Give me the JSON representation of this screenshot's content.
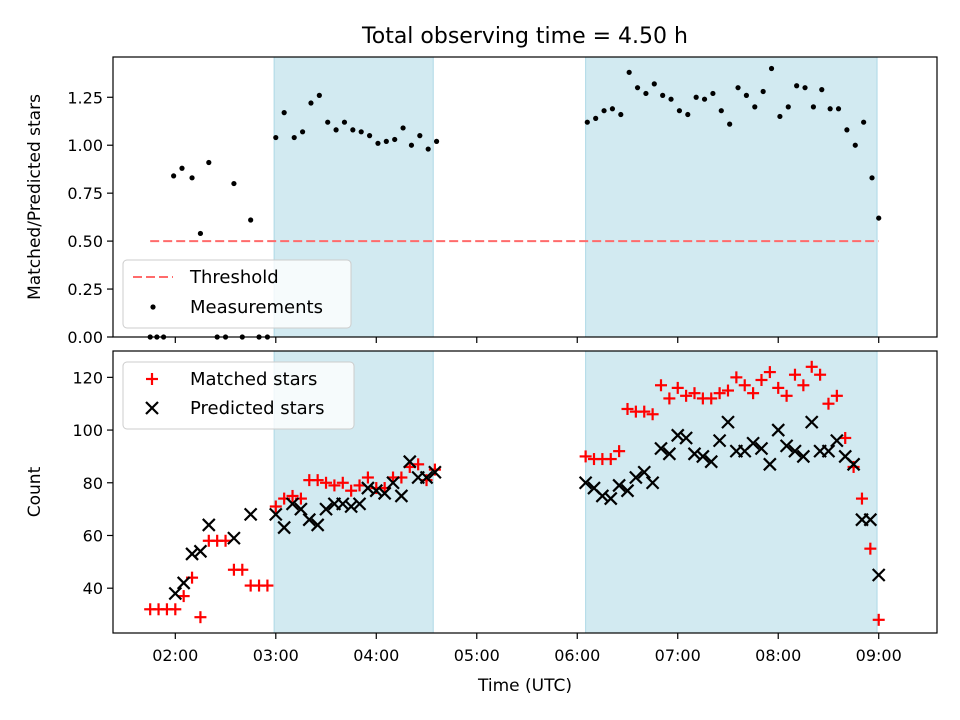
{
  "colors": {
    "shade": "#add8e6",
    "threshold": "#ff6b6b",
    "measurements": "#000000",
    "matched": "#ff0000",
    "predicted": "#000000"
  },
  "chart_data": [
    {
      "type": "scatter",
      "title": "Total observing time = 4.50 h",
      "ylabel": "Matched/Predicted stars",
      "xlim_hours": [
        1.38,
        9.58
      ],
      "ylim": [
        0,
        1.46
      ],
      "yticks": [
        0.0,
        0.25,
        0.5,
        0.75,
        1.0,
        1.25
      ],
      "ytick_labels": [
        "0.00",
        "0.25",
        "0.50",
        "0.75",
        "1.00",
        "1.25"
      ],
      "shaded_intervals": [
        [
          "02:59",
          "04:34"
        ],
        [
          "06:05",
          "08:59"
        ]
      ],
      "legend_position": "lower-left",
      "threshold": {
        "name": "Threshold",
        "value": 0.5,
        "x_range": [
          "01:45",
          "09:00"
        ]
      },
      "series": [
        {
          "name": "Measurements",
          "points": [
            [
              "01:45",
              0.0
            ],
            [
              "01:49",
              0.0
            ],
            [
              "01:53",
              0.0
            ],
            [
              "01:59",
              0.84
            ],
            [
              "02:04",
              0.88
            ],
            [
              "02:10",
              0.83
            ],
            [
              "02:15",
              0.54
            ],
            [
              "02:20",
              0.91
            ],
            [
              "02:25",
              0.0
            ],
            [
              "02:30",
              0.0
            ],
            [
              "02:35",
              0.8
            ],
            [
              "02:40",
              0.0
            ],
            [
              "02:45",
              0.61
            ],
            [
              "02:50",
              0.0
            ],
            [
              "02:55",
              0.0
            ],
            [
              "03:00",
              1.04
            ],
            [
              "03:05",
              1.17
            ],
            [
              "03:11",
              1.04
            ],
            [
              "03:16",
              1.07
            ],
            [
              "03:21",
              1.22
            ],
            [
              "03:26",
              1.26
            ],
            [
              "03:31",
              1.12
            ],
            [
              "03:36",
              1.08
            ],
            [
              "03:41",
              1.12
            ],
            [
              "03:46",
              1.08
            ],
            [
              "03:51",
              1.07
            ],
            [
              "03:56",
              1.05
            ],
            [
              "04:01",
              1.01
            ],
            [
              "04:06",
              1.02
            ],
            [
              "04:11",
              1.03
            ],
            [
              "04:16",
              1.09
            ],
            [
              "04:21",
              1.0
            ],
            [
              "04:26",
              1.05
            ],
            [
              "04:31",
              0.98
            ],
            [
              "04:36",
              1.02
            ],
            [
              "06:06",
              1.12
            ],
            [
              "06:11",
              1.14
            ],
            [
              "06:16",
              1.18
            ],
            [
              "06:21",
              1.19
            ],
            [
              "06:26",
              1.16
            ],
            [
              "06:31",
              1.38
            ],
            [
              "06:36",
              1.3
            ],
            [
              "06:41",
              1.27
            ],
            [
              "06:46",
              1.32
            ],
            [
              "06:51",
              1.26
            ],
            [
              "06:56",
              1.24
            ],
            [
              "07:01",
              1.18
            ],
            [
              "07:06",
              1.16
            ],
            [
              "07:11",
              1.25
            ],
            [
              "07:16",
              1.24
            ],
            [
              "07:21",
              1.27
            ],
            [
              "07:26",
              1.18
            ],
            [
              "07:31",
              1.11
            ],
            [
              "07:36",
              1.3
            ],
            [
              "07:41",
              1.26
            ],
            [
              "07:46",
              1.2
            ],
            [
              "07:51",
              1.28
            ],
            [
              "07:56",
              1.4
            ],
            [
              "08:01",
              1.15
            ],
            [
              "08:06",
              1.2
            ],
            [
              "08:11",
              1.31
            ],
            [
              "08:16",
              1.3
            ],
            [
              "08:21",
              1.2
            ],
            [
              "08:26",
              1.29
            ],
            [
              "08:31",
              1.19
            ],
            [
              "08:36",
              1.19
            ],
            [
              "08:41",
              1.08
            ],
            [
              "08:46",
              1.0
            ],
            [
              "08:51",
              1.12
            ],
            [
              "08:56",
              0.83
            ],
            [
              "09:00",
              0.62
            ]
          ]
        }
      ]
    },
    {
      "type": "scatter",
      "xlabel": "Time (UTC)",
      "ylabel": "Count",
      "xlim_hours": [
        1.38,
        9.58
      ],
      "ylim": [
        23,
        130
      ],
      "yticks": [
        40,
        60,
        80,
        100,
        120
      ],
      "xticks": [
        "02:00",
        "03:00",
        "04:00",
        "05:00",
        "06:00",
        "07:00",
        "08:00",
        "09:00"
      ],
      "shaded_intervals": [
        [
          "02:59",
          "04:34"
        ],
        [
          "06:05",
          "08:59"
        ]
      ],
      "legend_position": "upper-left",
      "series": [
        {
          "name": "Matched stars",
          "marker": "plus",
          "points": [
            [
              "01:45",
              32
            ],
            [
              "01:50",
              32
            ],
            [
              "01:55",
              32
            ],
            [
              "02:00",
              32
            ],
            [
              "02:05",
              37
            ],
            [
              "02:10",
              44
            ],
            [
              "02:15",
              29
            ],
            [
              "02:20",
              58
            ],
            [
              "02:25",
              58
            ],
            [
              "02:30",
              58
            ],
            [
              "02:35",
              47
            ],
            [
              "02:40",
              47
            ],
            [
              "02:45",
              41
            ],
            [
              "02:50",
              41
            ],
            [
              "02:55",
              41
            ],
            [
              "03:00",
              71
            ],
            [
              "03:05",
              74
            ],
            [
              "03:10",
              75
            ],
            [
              "03:15",
              74
            ],
            [
              "03:20",
              81
            ],
            [
              "03:25",
              81
            ],
            [
              "03:30",
              80
            ],
            [
              "03:35",
              79
            ],
            [
              "03:40",
              80
            ],
            [
              "03:45",
              77
            ],
            [
              "03:50",
              79
            ],
            [
              "03:55",
              82
            ],
            [
              "04:00",
              78
            ],
            [
              "04:05",
              78
            ],
            [
              "04:10",
              82
            ],
            [
              "04:15",
              82
            ],
            [
              "04:20",
              86
            ],
            [
              "04:25",
              87
            ],
            [
              "04:30",
              81
            ],
            [
              "04:35",
              85
            ],
            [
              "06:05",
              90
            ],
            [
              "06:10",
              89
            ],
            [
              "06:15",
              89
            ],
            [
              "06:20",
              89
            ],
            [
              "06:25",
              92
            ],
            [
              "06:30",
              108
            ],
            [
              "06:35",
              107
            ],
            [
              "06:40",
              107
            ],
            [
              "06:45",
              106
            ],
            [
              "06:50",
              117
            ],
            [
              "06:55",
              112
            ],
            [
              "07:00",
              116
            ],
            [
              "07:05",
              113
            ],
            [
              "07:10",
              114
            ],
            [
              "07:15",
              112
            ],
            [
              "07:20",
              112
            ],
            [
              "07:25",
              114
            ],
            [
              "07:30",
              115
            ],
            [
              "07:35",
              120
            ],
            [
              "07:40",
              117
            ],
            [
              "07:45",
              114
            ],
            [
              "07:50",
              119
            ],
            [
              "07:55",
              122
            ],
            [
              "08:00",
              116
            ],
            [
              "08:05",
              113
            ],
            [
              "08:10",
              121
            ],
            [
              "08:15",
              117
            ],
            [
              "08:20",
              124
            ],
            [
              "08:25",
              121
            ],
            [
              "08:30",
              110
            ],
            [
              "08:35",
              113
            ],
            [
              "08:40",
              97
            ],
            [
              "08:45",
              86
            ],
            [
              "08:50",
              74
            ],
            [
              "08:55",
              55
            ],
            [
              "09:00",
              28
            ]
          ]
        },
        {
          "name": "Predicted stars",
          "marker": "x",
          "points": [
            [
              "02:00",
              38
            ],
            [
              "02:05",
              42
            ],
            [
              "02:10",
              53
            ],
            [
              "02:15",
              54
            ],
            [
              "02:20",
              64
            ],
            [
              "02:35",
              59
            ],
            [
              "02:45",
              68
            ],
            [
              "03:00",
              68
            ],
            [
              "03:05",
              63
            ],
            [
              "03:10",
              72
            ],
            [
              "03:15",
              70
            ],
            [
              "03:20",
              66
            ],
            [
              "03:25",
              64
            ],
            [
              "03:30",
              70
            ],
            [
              "03:35",
              72
            ],
            [
              "03:40",
              72
            ],
            [
              "03:45",
              71
            ],
            [
              "03:50",
              72
            ],
            [
              "03:55",
              78
            ],
            [
              "04:00",
              77
            ],
            [
              "04:05",
              76
            ],
            [
              "04:10",
              80
            ],
            [
              "04:15",
              75
            ],
            [
              "04:20",
              88
            ],
            [
              "04:25",
              82
            ],
            [
              "04:30",
              82
            ],
            [
              "04:35",
              84
            ],
            [
              "06:05",
              80
            ],
            [
              "06:10",
              78
            ],
            [
              "06:15",
              75
            ],
            [
              "06:20",
              74
            ],
            [
              "06:25",
              79
            ],
            [
              "06:30",
              77
            ],
            [
              "06:35",
              82
            ],
            [
              "06:40",
              84
            ],
            [
              "06:45",
              80
            ],
            [
              "06:50",
              93
            ],
            [
              "06:55",
              91
            ],
            [
              "07:00",
              98
            ],
            [
              "07:05",
              97
            ],
            [
              "07:10",
              91
            ],
            [
              "07:15",
              90
            ],
            [
              "07:20",
              88
            ],
            [
              "07:25",
              96
            ],
            [
              "07:30",
              103
            ],
            [
              "07:35",
              92
            ],
            [
              "07:40",
              92
            ],
            [
              "07:45",
              95
            ],
            [
              "07:50",
              93
            ],
            [
              "07:55",
              87
            ],
            [
              "08:00",
              100
            ],
            [
              "08:05",
              94
            ],
            [
              "08:10",
              92
            ],
            [
              "08:15",
              90
            ],
            [
              "08:20",
              103
            ],
            [
              "08:25",
              92
            ],
            [
              "08:30",
              92
            ],
            [
              "08:35",
              96
            ],
            [
              "08:40",
              90
            ],
            [
              "08:45",
              87
            ],
            [
              "08:50",
              66
            ],
            [
              "08:55",
              66
            ],
            [
              "09:00",
              45
            ]
          ]
        }
      ]
    }
  ]
}
